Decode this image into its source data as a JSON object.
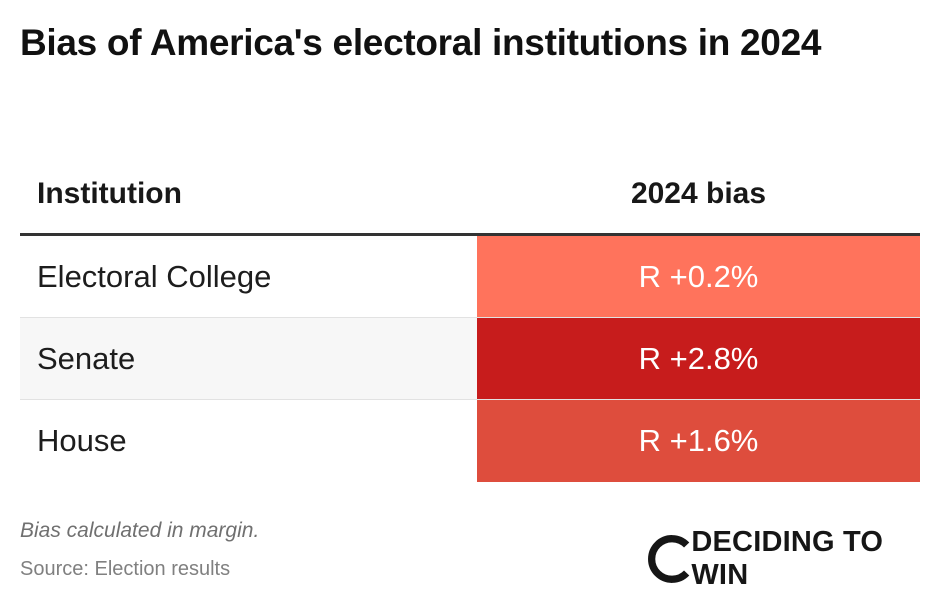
{
  "title": "Bias of America's electoral institutions in 2024",
  "columns": {
    "institution": "Institution",
    "bias": "2024 bias"
  },
  "chart_data": {
    "type": "table",
    "title": "Bias of America's electoral institutions in 2024",
    "columns": [
      "Institution",
      "2024 bias"
    ],
    "rows": [
      {
        "institution": "Electoral College",
        "bias_label": "R +0.2%",
        "party": "R",
        "bias": 0.2,
        "color": "#ff735c"
      },
      {
        "institution": "Senate",
        "bias_label": "R +2.8%",
        "party": "R",
        "bias": 2.8,
        "color": "#c71c1c"
      },
      {
        "institution": "House",
        "bias_label": "R +1.6%",
        "party": "R",
        "bias": 1.6,
        "color": "#de4d3d"
      }
    ]
  },
  "footnote": "Bias calculated in margin.",
  "source": "Source: Election results",
  "logo": {
    "text": "DECIDING TO WIN",
    "icon": "c-ring-logo-icon"
  }
}
